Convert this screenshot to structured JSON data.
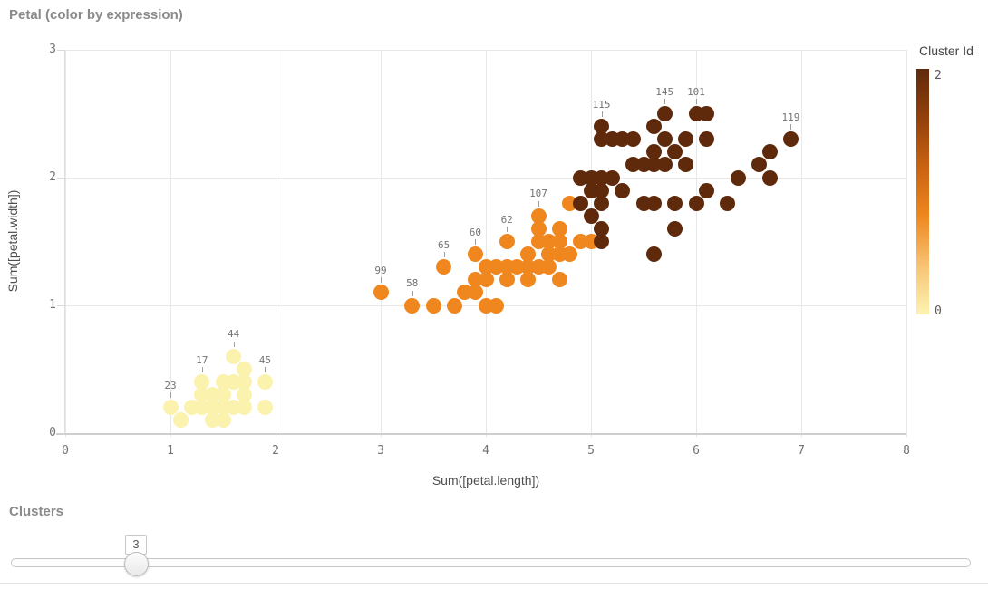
{
  "header": {
    "title": "Petal (color by expression)"
  },
  "chart_data": {
    "type": "scatter",
    "title": "Petal (color by expression)",
    "xlabel": "Sum([petal.length])",
    "ylabel": "Sum([petal.width])",
    "xlim": [
      0,
      8
    ],
    "ylim": [
      0,
      3
    ],
    "xticks": [
      "0",
      "1",
      "2",
      "3",
      "4",
      "5",
      "6",
      "7",
      "8"
    ],
    "yticks": [
      "0",
      "1",
      "2",
      "3"
    ],
    "grid": true,
    "legend": {
      "title": "Cluster Id",
      "position": "right",
      "max_label": "2",
      "min_label": "0",
      "gradient": [
        "#5f2a0c",
        "#93400c",
        "#c96311",
        "#ef871f",
        "#f7c372",
        "#fdf3b2"
      ]
    },
    "cluster_colors": [
      "#fbf2ae",
      "#f0861e",
      "#5f2a0c"
    ],
    "points": [
      [
        1.0,
        0.2,
        0
      ],
      [
        1.1,
        0.1,
        0
      ],
      [
        1.2,
        0.2,
        0
      ],
      [
        1.3,
        0.2,
        0
      ],
      [
        1.3,
        0.3,
        0
      ],
      [
        1.3,
        0.4,
        0
      ],
      [
        1.4,
        0.1,
        0
      ],
      [
        1.4,
        0.2,
        0
      ],
      [
        1.4,
        0.3,
        0
      ],
      [
        1.5,
        0.1,
        0
      ],
      [
        1.5,
        0.2,
        0
      ],
      [
        1.5,
        0.3,
        0
      ],
      [
        1.5,
        0.4,
        0
      ],
      [
        1.6,
        0.2,
        0
      ],
      [
        1.6,
        0.4,
        0
      ],
      [
        1.6,
        0.6,
        0
      ],
      [
        1.7,
        0.2,
        0
      ],
      [
        1.7,
        0.3,
        0
      ],
      [
        1.7,
        0.4,
        0
      ],
      [
        1.7,
        0.5,
        0
      ],
      [
        1.9,
        0.2,
        0
      ],
      [
        1.9,
        0.4,
        0
      ],
      [
        3.0,
        1.1,
        1
      ],
      [
        3.3,
        1.0,
        1
      ],
      [
        3.5,
        1.0,
        1
      ],
      [
        3.6,
        1.3,
        1
      ],
      [
        3.7,
        1.0,
        1
      ],
      [
        3.8,
        1.1,
        1
      ],
      [
        3.9,
        1.1,
        1
      ],
      [
        3.9,
        1.2,
        1
      ],
      [
        3.9,
        1.4,
        1
      ],
      [
        4.0,
        1.0,
        1
      ],
      [
        4.0,
        1.2,
        1
      ],
      [
        4.0,
        1.3,
        1
      ],
      [
        4.1,
        1.0,
        1
      ],
      [
        4.1,
        1.3,
        1
      ],
      [
        4.2,
        1.2,
        1
      ],
      [
        4.2,
        1.3,
        1
      ],
      [
        4.2,
        1.5,
        1
      ],
      [
        4.3,
        1.3,
        1
      ],
      [
        4.4,
        1.2,
        1
      ],
      [
        4.4,
        1.3,
        1
      ],
      [
        4.4,
        1.4,
        1
      ],
      [
        4.5,
        1.3,
        1
      ],
      [
        4.5,
        1.5,
        1
      ],
      [
        4.5,
        1.6,
        1
      ],
      [
        4.5,
        1.7,
        1
      ],
      [
        4.6,
        1.3,
        1
      ],
      [
        4.6,
        1.4,
        1
      ],
      [
        4.6,
        1.5,
        1
      ],
      [
        4.7,
        1.2,
        1
      ],
      [
        4.7,
        1.4,
        1
      ],
      [
        4.7,
        1.5,
        1
      ],
      [
        4.7,
        1.6,
        1
      ],
      [
        4.8,
        1.4,
        1
      ],
      [
        4.8,
        1.8,
        1
      ],
      [
        4.9,
        1.5,
        1
      ],
      [
        5.0,
        1.5,
        1
      ],
      [
        4.9,
        1.8,
        2
      ],
      [
        4.9,
        2.0,
        2
      ],
      [
        5.0,
        1.7,
        2
      ],
      [
        5.0,
        1.9,
        2
      ],
      [
        5.0,
        2.0,
        2
      ],
      [
        5.1,
        1.5,
        2
      ],
      [
        5.1,
        1.6,
        2
      ],
      [
        5.1,
        1.8,
        2
      ],
      [
        5.1,
        1.9,
        2
      ],
      [
        5.1,
        2.0,
        2
      ],
      [
        5.1,
        2.3,
        2
      ],
      [
        5.1,
        2.4,
        2
      ],
      [
        5.2,
        2.0,
        2
      ],
      [
        5.2,
        2.3,
        2
      ],
      [
        5.3,
        1.9,
        2
      ],
      [
        5.3,
        2.3,
        2
      ],
      [
        5.4,
        2.1,
        2
      ],
      [
        5.4,
        2.3,
        2
      ],
      [
        5.5,
        1.8,
        2
      ],
      [
        5.5,
        2.1,
        2
      ],
      [
        5.6,
        1.4,
        2
      ],
      [
        5.6,
        1.8,
        2
      ],
      [
        5.6,
        2.1,
        2
      ],
      [
        5.6,
        2.2,
        2
      ],
      [
        5.6,
        2.4,
        2
      ],
      [
        5.7,
        2.1,
        2
      ],
      [
        5.7,
        2.3,
        2
      ],
      [
        5.7,
        2.5,
        2
      ],
      [
        5.8,
        1.6,
        2
      ],
      [
        5.8,
        1.8,
        2
      ],
      [
        5.8,
        2.2,
        2
      ],
      [
        5.9,
        2.1,
        2
      ],
      [
        5.9,
        2.3,
        2
      ],
      [
        6.0,
        1.8,
        2
      ],
      [
        6.0,
        2.5,
        2
      ],
      [
        6.1,
        1.9,
        2
      ],
      [
        6.1,
        2.3,
        2
      ],
      [
        6.1,
        2.5,
        2
      ],
      [
        6.3,
        1.8,
        2
      ],
      [
        6.4,
        2.0,
        2
      ],
      [
        6.6,
        2.1,
        2
      ],
      [
        6.7,
        2.0,
        2
      ],
      [
        6.7,
        2.2,
        2
      ],
      [
        6.9,
        2.3,
        2
      ]
    ],
    "point_labels": [
      {
        "text": "23",
        "x": 1.0,
        "y": 0.2
      },
      {
        "text": "17",
        "x": 1.3,
        "y": 0.4
      },
      {
        "text": "44",
        "x": 1.6,
        "y": 0.6
      },
      {
        "text": "45",
        "x": 1.9,
        "y": 0.4
      },
      {
        "text": "99",
        "x": 3.0,
        "y": 1.1
      },
      {
        "text": "58",
        "x": 3.3,
        "y": 1.0
      },
      {
        "text": "65",
        "x": 3.6,
        "y": 1.3
      },
      {
        "text": "60",
        "x": 3.9,
        "y": 1.4
      },
      {
        "text": "62",
        "x": 4.2,
        "y": 1.5
      },
      {
        "text": "107",
        "x": 4.5,
        "y": 1.7
      },
      {
        "text": "115",
        "x": 5.1,
        "y": 2.4
      },
      {
        "text": "145",
        "x": 5.7,
        "y": 2.5
      },
      {
        "text": "101",
        "x": 6.0,
        "y": 2.5
      },
      {
        "text": "119",
        "x": 6.9,
        "y": 2.3
      }
    ]
  },
  "clusters_panel": {
    "title": "Clusters",
    "slider_value": "3"
  }
}
